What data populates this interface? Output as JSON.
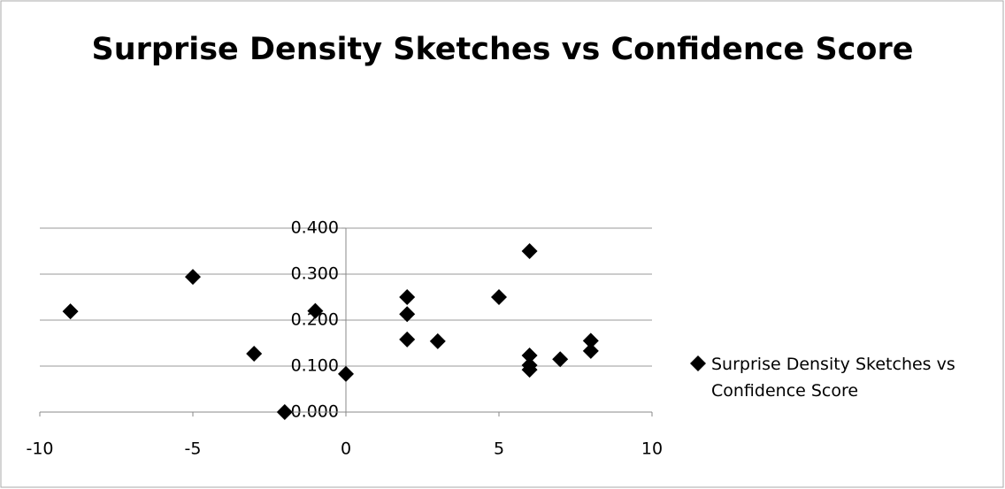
{
  "chart_data": {
    "type": "scatter",
    "title": "Surprise Density Sketches vs Confidence Score",
    "series": [
      {
        "name": "Surprise Density Sketches vs Confidence Score",
        "color": "#000000",
        "x": [
          -9,
          -5,
          -3,
          -2,
          -1,
          0,
          2,
          2,
          2,
          3,
          5,
          6,
          6,
          6,
          6,
          7,
          8,
          8
        ],
        "values": [
          0.219,
          0.294,
          0.127,
          0.0,
          0.22,
          0.083,
          0.25,
          0.213,
          0.158,
          0.154,
          0.25,
          0.35,
          0.123,
          0.102,
          0.092,
          0.115,
          0.155,
          0.133
        ]
      }
    ],
    "xlim": [
      -10,
      10
    ],
    "xticks": [
      -10,
      -5,
      0,
      5,
      10
    ],
    "ylim": [
      0,
      0.4
    ],
    "yticks": [
      {
        "value": 0,
        "label": "0.000"
      },
      {
        "value": 0.1,
        "label": "0.100"
      },
      {
        "value": 0.2,
        "label": "0.200"
      },
      {
        "value": 0.3,
        "label": "0.300"
      },
      {
        "value": 0.4,
        "label": "0.400"
      }
    ],
    "grid": true,
    "legend": "right"
  }
}
